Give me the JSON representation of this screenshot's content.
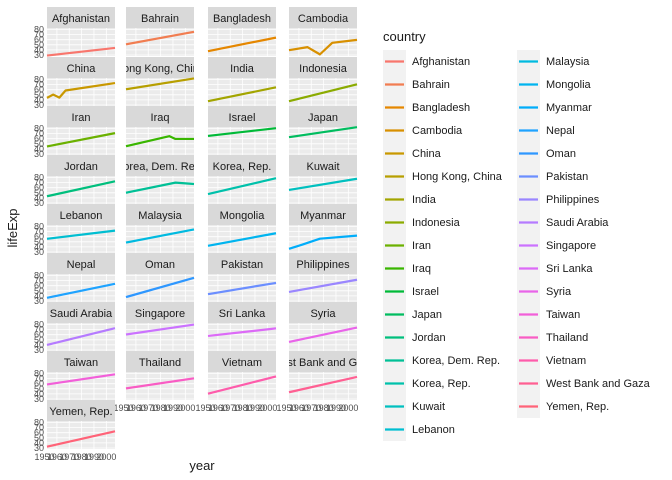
{
  "chart_data": {
    "type": "line",
    "facet_by": "country",
    "xlabel": "year",
    "ylabel": "lifeExp",
    "legend_title": "country",
    "legend_position": "right",
    "x_ticks": [
      "1950",
      "1960",
      "1970",
      "1980",
      "1990",
      "2000"
    ],
    "y_ticks": [
      "30",
      "40",
      "50",
      "60",
      "70",
      "80"
    ],
    "xlim": [
      1952,
      2007
    ],
    "ylim": [
      28,
      83
    ],
    "grid": true,
    "series": [
      {
        "name": "Afghanistan",
        "color": "#F8766D",
        "x": [
          1952,
          2007
        ],
        "values": [
          28.8,
          43.8
        ]
      },
      {
        "name": "Bahrain",
        "color": "#F17D51",
        "x": [
          1952,
          2007
        ],
        "values": [
          50.9,
          75.6
        ]
      },
      {
        "name": "Bangladesh",
        "color": "#E58700",
        "x": [
          1952,
          2007
        ],
        "values": [
          37.5,
          64.1
        ]
      },
      {
        "name": "Cambodia",
        "color": "#D89000",
        "x": [
          1952,
          1967,
          1977,
          1987,
          2007
        ],
        "values": [
          39.4,
          45.4,
          31.2,
          53.9,
          59.7
        ]
      },
      {
        "name": "China",
        "color": "#C99800",
        "x": [
          1952,
          1957,
          1962,
          1967,
          2007
        ],
        "values": [
          44.0,
          50.5,
          44.5,
          58.4,
          73.0
        ]
      },
      {
        "name": "Hong Kong, China",
        "color": "#B79F00",
        "x": [
          1952,
          2007
        ],
        "values": [
          60.9,
          82.2
        ]
      },
      {
        "name": "India",
        "color": "#A3A500",
        "x": [
          1952,
          2007
        ],
        "values": [
          37.4,
          64.7
        ]
      },
      {
        "name": "Indonesia",
        "color": "#8BAB00",
        "x": [
          1952,
          2007
        ],
        "values": [
          37.5,
          70.7
        ]
      },
      {
        "name": "Iran",
        "color": "#6BB100",
        "x": [
          1952,
          2007
        ],
        "values": [
          44.9,
          71.0
        ]
      },
      {
        "name": "Iraq",
        "color": "#39B600",
        "x": [
          1952,
          1987,
          1992,
          2007
        ],
        "values": [
          45.3,
          65.0,
          59.5,
          59.5
        ]
      },
      {
        "name": "Israel",
        "color": "#00BA38",
        "x": [
          1952,
          2007
        ],
        "values": [
          65.4,
          80.7
        ]
      },
      {
        "name": "Japan",
        "color": "#00BD5F",
        "x": [
          1952,
          2007
        ],
        "values": [
          63.0,
          82.6
        ]
      },
      {
        "name": "Jordan",
        "color": "#00BF7D",
        "x": [
          1952,
          2007
        ],
        "values": [
          43.2,
          72.5
        ]
      },
      {
        "name": "Korea, Dem. Rep.",
        "color": "#00C096",
        "x": [
          1952,
          1992,
          2007
        ],
        "values": [
          50.1,
          70.0,
          67.3
        ]
      },
      {
        "name": "Korea, Rep.",
        "color": "#00C1AB",
        "x": [
          1952,
          2007
        ],
        "values": [
          47.5,
          78.6
        ]
      },
      {
        "name": "Kuwait",
        "color": "#00C0BF",
        "x": [
          1952,
          2007
        ],
        "values": [
          55.6,
          77.6
        ]
      },
      {
        "name": "Lebanon",
        "color": "#00BED1",
        "x": [
          1952,
          2007
        ],
        "values": [
          55.9,
          72.0
        ]
      },
      {
        "name": "Malaysia",
        "color": "#00BAE0",
        "x": [
          1952,
          2007
        ],
        "values": [
          48.5,
          74.2
        ]
      },
      {
        "name": "Mongolia",
        "color": "#00B4EF",
        "x": [
          1952,
          2007
        ],
        "values": [
          42.2,
          66.8
        ]
      },
      {
        "name": "Myanmar",
        "color": "#00ADFA",
        "x": [
          1952,
          1962,
          1977,
          2007
        ],
        "values": [
          36.3,
          43.9,
          56.1,
          62.1
        ]
      },
      {
        "name": "Nepal",
        "color": "#1FA3FF",
        "x": [
          1952,
          2007
        ],
        "values": [
          36.2,
          63.8
        ]
      },
      {
        "name": "Oman",
        "color": "#2E97FF",
        "x": [
          1952,
          2007
        ],
        "values": [
          37.6,
          75.6
        ]
      },
      {
        "name": "Pakistan",
        "color": "#6B8EFF",
        "x": [
          1952,
          2007
        ],
        "values": [
          43.4,
          65.5
        ]
      },
      {
        "name": "Philippines",
        "color": "#9A86FF",
        "x": [
          1952,
          2007
        ],
        "values": [
          47.8,
          71.7
        ]
      },
      {
        "name": "Saudi Arabia",
        "color": "#B57BFF",
        "x": [
          1952,
          2007
        ],
        "values": [
          39.9,
          72.8
        ]
      },
      {
        "name": "Singapore",
        "color": "#CB72FF",
        "x": [
          1952,
          2007
        ],
        "values": [
          60.4,
          80.0
        ]
      },
      {
        "name": "Sri Lanka",
        "color": "#DC6AF7",
        "x": [
          1952,
          2007
        ],
        "values": [
          57.6,
          72.4
        ]
      },
      {
        "name": "Syria",
        "color": "#E964E9",
        "x": [
          1952,
          2007
        ],
        "values": [
          45.9,
          74.1
        ]
      },
      {
        "name": "Taiwan",
        "color": "#F25FD9",
        "x": [
          1952,
          2007
        ],
        "values": [
          58.5,
          78.4
        ]
      },
      {
        "name": "Thailand",
        "color": "#F95CC4",
        "x": [
          1952,
          2007
        ],
        "values": [
          50.8,
          70.6
        ]
      },
      {
        "name": "Vietnam",
        "color": "#FE5CAB",
        "x": [
          1952,
          2007
        ],
        "values": [
          40.4,
          74.2
        ]
      },
      {
        "name": "West Bank and Gaza",
        "color": "#FF5F92",
        "x": [
          1952,
          2007
        ],
        "values": [
          43.2,
          73.4
        ]
      },
      {
        "name": "Yemen, Rep.",
        "color": "#FF6378",
        "x": [
          1952,
          2007
        ],
        "values": [
          32.5,
          62.7
        ]
      }
    ]
  },
  "style": {
    "panel_bg": "#EBEBEB",
    "strip_bg": "#D9D9D9",
    "grid_color": "#FFFFFF",
    "text_color": "#1A1A1A",
    "tick_color": "#4D4D4D",
    "legend_key_bg": "#F2F2F2"
  }
}
